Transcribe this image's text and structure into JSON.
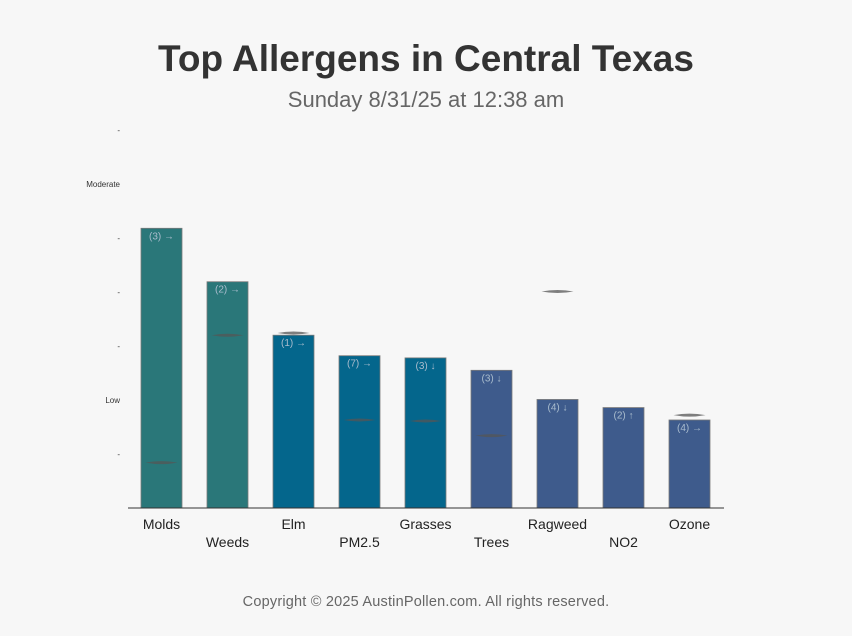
{
  "title": "Top Allergens in Central Texas",
  "subtitle": "Sunday 8/31/25 at 12:38 am",
  "footer": "Copyright © 2025 AustinPollen.com.  All rights reserved.",
  "chart_data": {
    "type": "bar",
    "ylim": [
      0,
      7
    ],
    "y_ticks": [
      {
        "value": 1,
        "label": "-"
      },
      {
        "value": 2,
        "label": "Low"
      },
      {
        "value": 3,
        "label": "-"
      },
      {
        "value": 4,
        "label": "-"
      },
      {
        "value": 5,
        "label": "-"
      },
      {
        "value": 6,
        "label": "Moderate"
      },
      {
        "value": 7,
        "label": "-"
      }
    ],
    "categories": [
      "Molds",
      "Weeds",
      "Elm",
      "PM2.5",
      "Grasses",
      "Trees",
      "Ragweed",
      "NO2",
      "Ozone"
    ],
    "values": [
      5.18,
      4.19,
      3.2,
      2.82,
      2.78,
      2.55,
      2.01,
      1.86,
      1.63
    ],
    "rank_labels": [
      "(3) →",
      "(2) →",
      "(1) →",
      "(7) →",
      "(3) ↓",
      "(3) ↓",
      "(4) ↓",
      "(2) ↑",
      "(4) →"
    ],
    "marker_values": [
      0.84,
      3.2,
      3.24,
      1.63,
      1.61,
      1.34,
      4.01,
      null,
      1.72
    ],
    "colors": [
      "#2a7779",
      "#2a7779",
      "#04668c",
      "#04668c",
      "#04668c",
      "#3e5b8c",
      "#3e5b8c",
      "#3e5b8c",
      "#3e5b8c"
    ]
  }
}
